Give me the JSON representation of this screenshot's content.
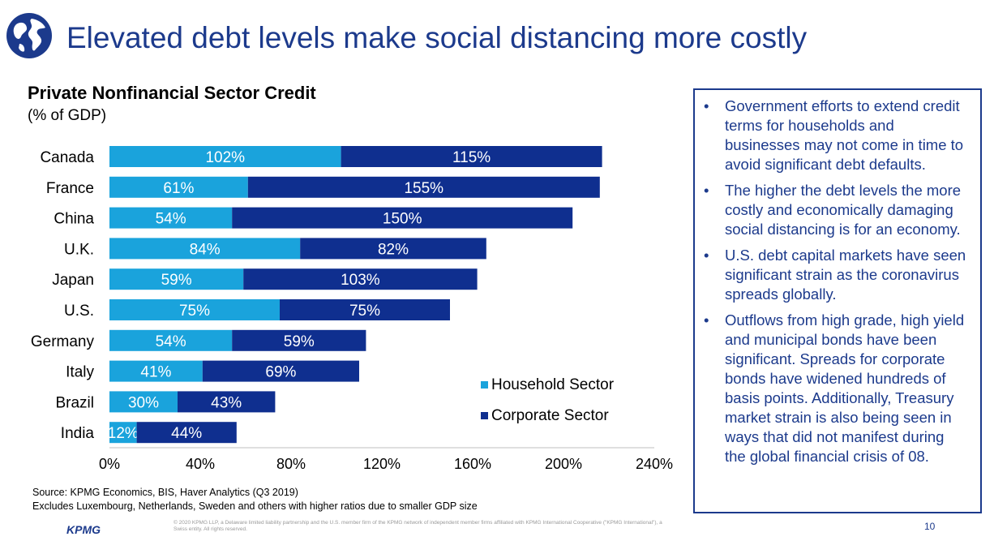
{
  "slide": {
    "title": "Elevated debt levels make social distancing more costly",
    "icon": "globe-icon",
    "page_number": "10"
  },
  "chart_data": {
    "type": "bar",
    "orientation": "horizontal",
    "stacked": true,
    "title": "Private Nonfinancial Sector Credit",
    "subtitle": "(% of GDP)",
    "categories": [
      "Canada",
      "France",
      "China",
      "U.K.",
      "Japan",
      "U.S.",
      "Germany",
      "Italy",
      "Brazil",
      "India"
    ],
    "series": [
      {
        "name": "Household Sector",
        "color": "#1aa3dc",
        "values": [
          102,
          61,
          54,
          84,
          59,
          75,
          54,
          41,
          30,
          12
        ],
        "labels": [
          "102%",
          "61%",
          "54%",
          "84%",
          "59%",
          "75%",
          "54%",
          "41%",
          "30%",
          "12%"
        ]
      },
      {
        "name": "Corporate Sector",
        "color": "#0f2f8f",
        "values": [
          115,
          155,
          150,
          82,
          103,
          75,
          59,
          69,
          43,
          44
        ],
        "labels": [
          "115%",
          "155%",
          "150%",
          "82%",
          "103%",
          "75%",
          "59%",
          "69%",
          "43%",
          "44%"
        ]
      }
    ],
    "xlim": [
      0,
      240
    ],
    "xticks": [
      "0%",
      "40%",
      "80%",
      "120%",
      "160%",
      "200%",
      "240%"
    ],
    "grid": false,
    "legend_position": "lower-right"
  },
  "source": {
    "line1": "Source: KPMG Economics, BIS, Haver Analytics (Q3 2019)",
    "line2": "Excludes Luxembourg, Netherlands, Sweden and others with higher ratios due to smaller GDP size"
  },
  "panel": {
    "bullet_symbol": "•",
    "bullets": [
      "Government efforts to extend credit terms for households and businesses may not come in time to avoid significant debt defaults.",
      "The higher the debt levels the more costly and economically damaging social distancing is for an economy.",
      "U.S. debt capital markets have seen significant strain as the coronavirus spreads globally.",
      "Outflows from high grade, high yield and municipal bonds have been significant. Spreads for corporate bonds have widened hundreds of basis points. Additionally, Treasury market strain is also being seen in ways that did not manifest during the global financial crisis of 08."
    ]
  },
  "footer": {
    "logo": "KPMG",
    "legal": "© 2020 KPMG LLP, a Delaware limited liability partnership and the U.S. member firm of the KPMG network of independent member firms affiliated with KPMG International Cooperative (\"KPMG International\"), a Swiss entity. All rights reserved."
  }
}
